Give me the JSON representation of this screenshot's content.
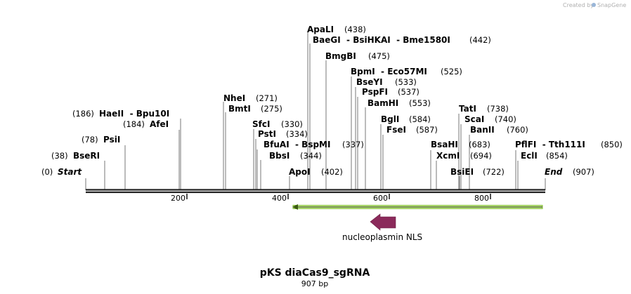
{
  "credit": {
    "text": "Created by",
    "brand": "SnapGene"
  },
  "sequence": {
    "name": "pKS diaCas9_sgRNA",
    "length_bp": 907,
    "length_label": "907 bp"
  },
  "ruler_ticks": [
    "200",
    "400",
    "600",
    "800"
  ],
  "sites": [
    {
      "id": "start",
      "name": "Start",
      "pos_label": "(0)",
      "pos": 0,
      "side": "left",
      "italic": true
    },
    {
      "id": "bseri",
      "name": "BseRI",
      "pos_label": "(38)",
      "pos": 38,
      "side": "left"
    },
    {
      "id": "psii",
      "name": "PsiI",
      "pos_label": "(78)",
      "pos": 78,
      "side": "left"
    },
    {
      "id": "afei",
      "name": "AfeI",
      "pos_label": "(184)",
      "pos": 184,
      "side": "left"
    },
    {
      "id": "haeii",
      "name": "HaeII  - Bpu10I",
      "pos_label": "(186)",
      "pos": 186,
      "side": "left"
    },
    {
      "id": "ndei",
      "name": "NheI",
      "pos_label": "(271)",
      "pos": 271,
      "side": "right"
    },
    {
      "id": "bmti",
      "name": "BmtI",
      "pos_label": "(275)",
      "pos": 275,
      "side": "right"
    },
    {
      "id": "sfci",
      "name": "SfcI",
      "pos_label": "(330)",
      "pos": 330,
      "side": "right"
    },
    {
      "id": "psti",
      "name": "PstI",
      "pos_label": "(334)",
      "pos": 334,
      "side": "right"
    },
    {
      "id": "bfuai",
      "name": "BfuAI  - BspMI",
      "pos_label": "(337)",
      "pos": 337,
      "side": "right"
    },
    {
      "id": "bbsi",
      "name": "BbsI",
      "pos_label": "(344)",
      "pos": 344,
      "side": "right"
    },
    {
      "id": "apoi",
      "name": "ApoI",
      "pos_label": "(402)",
      "pos": 402,
      "side": "right"
    },
    {
      "id": "apali",
      "name": "ApaLI",
      "pos_label": "(438)",
      "pos": 438,
      "side": "right"
    },
    {
      "id": "baegi",
      "name": "BaeGI  - BsiHKAI  - Bme1580I",
      "pos_label": "(442)",
      "pos": 442,
      "side": "right"
    },
    {
      "id": "bmgbi",
      "name": "BmgBI",
      "pos_label": "(475)",
      "pos": 475,
      "side": "right"
    },
    {
      "id": "bpmi",
      "name": "BpmI  - Eco57MI",
      "pos_label": "(525)",
      "pos": 525,
      "side": "right"
    },
    {
      "id": "bseyi",
      "name": "BseYI",
      "pos_label": "(533)",
      "pos": 533,
      "side": "right"
    },
    {
      "id": "pspfi",
      "name": "PspFI",
      "pos_label": "(537)",
      "pos": 537,
      "side": "right"
    },
    {
      "id": "bamhi",
      "name": "BamHI",
      "pos_label": "(553)",
      "pos": 553,
      "side": "right"
    },
    {
      "id": "bgli",
      "name": "BglI",
      "pos_label": "(584)",
      "pos": 584,
      "side": "right"
    },
    {
      "id": "fsei",
      "name": "FseI",
      "pos_label": "(587)",
      "pos": 587,
      "side": "right"
    },
    {
      "id": "bsahi",
      "name": "BsaHI",
      "pos_label": "(683)",
      "pos": 683,
      "side": "right"
    },
    {
      "id": "xcmi",
      "name": "XcmI",
      "pos_label": "(694)",
      "pos": 694,
      "side": "right"
    },
    {
      "id": "bsiei",
      "name": "BsiEI",
      "pos_label": "(722)",
      "pos": 722,
      "side": "right"
    },
    {
      "id": "tati",
      "name": "TatI",
      "pos_label": "(738)",
      "pos": 738,
      "side": "right"
    },
    {
      "id": "scai",
      "name": "ScaI",
      "pos_label": "(740)",
      "pos": 740,
      "side": "right"
    },
    {
      "id": "banii",
      "name": "BanII",
      "pos_label": "(760)",
      "pos": 760,
      "side": "right"
    },
    {
      "id": "pflfi",
      "name": "PflFI  - Tth111I",
      "pos_label": "(850)",
      "pos": 850,
      "side": "right"
    },
    {
      "id": "ecli",
      "name": "EclI",
      "pos_label": "(854)",
      "pos": 854,
      "side": "right"
    },
    {
      "id": "end",
      "name": "End",
      "pos_label": "(907)",
      "pos": 907,
      "side": "right",
      "italic": true
    }
  ],
  "features": [
    {
      "name": "nucleoplasmin NLS",
      "start": 404,
      "end": 907,
      "direction": "reverse",
      "color": "#8b2a5b",
      "highlight_color": "#9bd24a"
    }
  ]
}
